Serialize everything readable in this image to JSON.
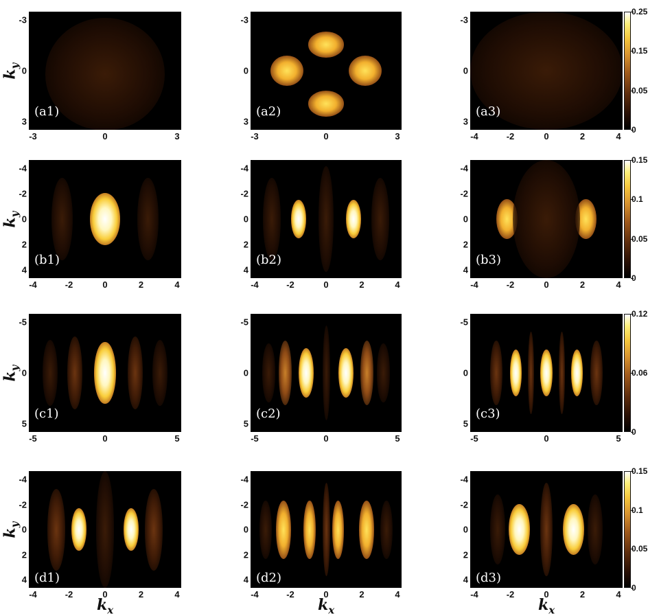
{
  "figure": {
    "x_axis_label": "k",
    "x_axis_sub": "x",
    "y_axis_label": "k",
    "y_axis_sub": "y"
  },
  "rows": [
    {
      "y_ticks": [
        "-3",
        "0",
        "3"
      ],
      "x_ticks_left": [
        "-3",
        "0",
        "3"
      ],
      "x_ticks_mid": [
        "-3",
        "0",
        "3"
      ],
      "x_ticks_right": [
        "-4",
        "-2",
        "0",
        "2",
        "4"
      ],
      "colorbar_ticks": [
        "0.25",
        "0.15",
        "0.05",
        "0"
      ],
      "panels": [
        "(a1)",
        "(a2)",
        "(a3)"
      ]
    },
    {
      "y_ticks": [
        "-4",
        "-2",
        "0",
        "2",
        "4"
      ],
      "x_ticks_left": [
        "-4",
        "-2",
        "0",
        "2",
        "4"
      ],
      "x_ticks_mid": [
        "-4",
        "-2",
        "0",
        "2",
        "4"
      ],
      "x_ticks_right": [
        "-4",
        "-2",
        "0",
        "2",
        "4"
      ],
      "colorbar_ticks": [
        "0.15",
        "0.1",
        "0.05",
        "0"
      ],
      "panels": [
        "(b1)",
        "(b2)",
        "(b3)"
      ]
    },
    {
      "y_ticks": [
        "-5",
        "0",
        "5"
      ],
      "x_ticks_left": [
        "-5",
        "0",
        "5"
      ],
      "x_ticks_mid": [
        "-5",
        "0",
        "5"
      ],
      "x_ticks_right": [
        "-5",
        "0",
        "5"
      ],
      "colorbar_ticks": [
        "0.12",
        "0.06",
        "0"
      ],
      "panels": [
        "(c1)",
        "(c2)",
        "(c3)"
      ]
    },
    {
      "y_ticks": [
        "-4",
        "-2",
        "0",
        "2",
        "4"
      ],
      "x_ticks_left": [
        "-4",
        "-2",
        "0",
        "2",
        "4"
      ],
      "x_ticks_mid": [
        "-4",
        "-2",
        "0",
        "2",
        "4"
      ],
      "x_ticks_right": [
        "-4",
        "-2",
        "0",
        "2",
        "4"
      ],
      "colorbar_ticks": [
        "0.15",
        "0.1",
        "0.05",
        "0"
      ],
      "panels": [
        "(d1)",
        "(d2)",
        "(d3)"
      ]
    }
  ],
  "colormap": {
    "low": "#000000",
    "mid": "#a05a1c",
    "high": "#ffffff",
    "accent": "#f6c83e"
  }
}
